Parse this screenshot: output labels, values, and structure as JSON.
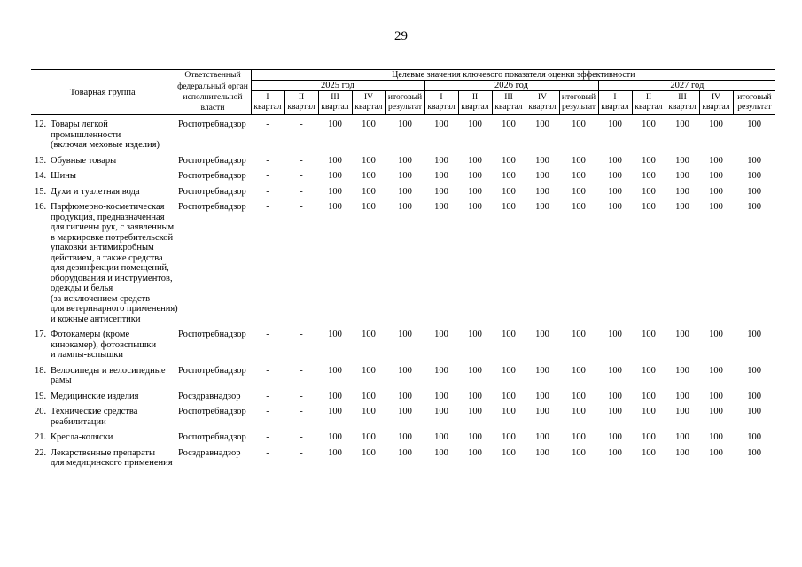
{
  "page_number": "29",
  "table": {
    "col_product_group": "Товарная группа",
    "col_responsible_body": "Ответственный\nфедеральный орган\nисполнительной\nвласти",
    "col_target_values": "Целевые значения ключевого показателя оценки эффективности",
    "years": [
      "2025 год",
      "2026 год",
      "2027 год"
    ],
    "quarters": [
      "I",
      "II",
      "III",
      "IV"
    ],
    "quarter_word": "квартал",
    "total_result": "итоговый\nрезультат",
    "rows": [
      {
        "num": "12.",
        "name": "Товары легкой\nпромышленности\n(включая меховые изделия)",
        "org": "Роспотребнадзор",
        "values": [
          "-",
          "-",
          "100",
          "100",
          "100",
          "100",
          "100",
          "100",
          "100",
          "100",
          "100",
          "100",
          "100",
          "100",
          "100"
        ]
      },
      {
        "num": "13.",
        "name": "Обувные товары",
        "org": "Роспотребнадзор",
        "values": [
          "-",
          "-",
          "100",
          "100",
          "100",
          "100",
          "100",
          "100",
          "100",
          "100",
          "100",
          "100",
          "100",
          "100",
          "100"
        ]
      },
      {
        "num": "14.",
        "name": "Шины",
        "org": "Роспотребнадзор",
        "values": [
          "-",
          "-",
          "100",
          "100",
          "100",
          "100",
          "100",
          "100",
          "100",
          "100",
          "100",
          "100",
          "100",
          "100",
          "100"
        ]
      },
      {
        "num": "15.",
        "name": "Духи и туалетная вода",
        "org": "Роспотребнадзор",
        "values": [
          "-",
          "-",
          "100",
          "100",
          "100",
          "100",
          "100",
          "100",
          "100",
          "100",
          "100",
          "100",
          "100",
          "100",
          "100"
        ]
      },
      {
        "num": "16.",
        "name": "Парфюмерно-косметическая\nпродукция, предназначенная\nдля гигиены рук, с заявленным\nв маркировке потребительской\nупаковки антимикробным\nдействием, а также средства\nдля дезинфекции помещений,\nоборудования и инструментов,\nодежды и белья\n(за исключением средств\nдля ветеринарного применения)\nи кожные антисептики",
        "org": "Роспотребнадзор",
        "values": [
          "-",
          "-",
          "100",
          "100",
          "100",
          "100",
          "100",
          "100",
          "100",
          "100",
          "100",
          "100",
          "100",
          "100",
          "100"
        ]
      },
      {
        "num": "17.",
        "name": "Фотокамеры (кроме\nкинокамер), фотовспышки\nи лампы-вспышки",
        "org": "Роспотребнадзор",
        "values": [
          "-",
          "-",
          "100",
          "100",
          "100",
          "100",
          "100",
          "100",
          "100",
          "100",
          "100",
          "100",
          "100",
          "100",
          "100"
        ]
      },
      {
        "num": "18.",
        "name": "Велосипеды и велосипедные\nрамы",
        "org": "Роспотребнадзор",
        "values": [
          "-",
          "-",
          "100",
          "100",
          "100",
          "100",
          "100",
          "100",
          "100",
          "100",
          "100",
          "100",
          "100",
          "100",
          "100"
        ]
      },
      {
        "num": "19.",
        "name": "Медицинские изделия",
        "org": "Росздравнадзор",
        "values": [
          "-",
          "-",
          "100",
          "100",
          "100",
          "100",
          "100",
          "100",
          "100",
          "100",
          "100",
          "100",
          "100",
          "100",
          "100"
        ]
      },
      {
        "num": "20.",
        "name": "Технические средства\nреабилитации",
        "org": "Роспотребнадзор",
        "values": [
          "-",
          "-",
          "100",
          "100",
          "100",
          "100",
          "100",
          "100",
          "100",
          "100",
          "100",
          "100",
          "100",
          "100",
          "100"
        ]
      },
      {
        "num": "21.",
        "name": "Кресла-коляски",
        "org": "Роспотребнадзор",
        "values": [
          "-",
          "-",
          "100",
          "100",
          "100",
          "100",
          "100",
          "100",
          "100",
          "100",
          "100",
          "100",
          "100",
          "100",
          "100"
        ]
      },
      {
        "num": "22.",
        "name": "Лекарственные препараты\nдля медицинского применения",
        "org": "Росздравнадзор",
        "values": [
          "-",
          "-",
          "100",
          "100",
          "100",
          "100",
          "100",
          "100",
          "100",
          "100",
          "100",
          "100",
          "100",
          "100",
          "100"
        ]
      }
    ]
  }
}
